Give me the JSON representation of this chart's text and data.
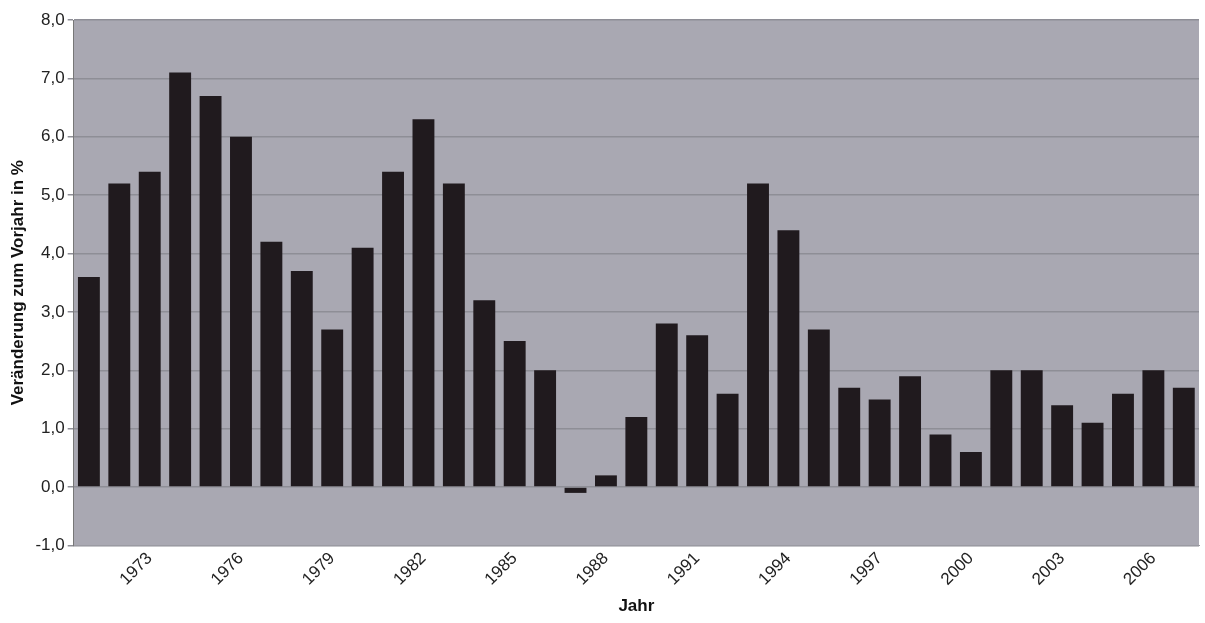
{
  "chart_data": {
    "type": "bar",
    "xlabel": "Jahr",
    "ylabel": "Veränderung zum Vorjahr in %",
    "categories": [
      null,
      null,
      "1973",
      null,
      null,
      "1976",
      null,
      null,
      "1979",
      null,
      null,
      "1982",
      null,
      null,
      "1985",
      null,
      null,
      "1988",
      null,
      null,
      "1991",
      null,
      null,
      "1994",
      null,
      null,
      "1997",
      null,
      null,
      "2000",
      null,
      null,
      "2003",
      null,
      null,
      "2006",
      null
    ],
    "values": [
      3.6,
      5.2,
      5.4,
      7.1,
      6.7,
      6.0,
      4.2,
      3.7,
      2.7,
      4.1,
      5.4,
      6.3,
      5.2,
      3.2,
      2.5,
      2.0,
      -0.1,
      0.2,
      1.2,
      2.8,
      2.6,
      1.6,
      5.2,
      4.4,
      2.7,
      1.7,
      1.5,
      1.9,
      0.9,
      0.6,
      2.0,
      2.0,
      1.4,
      1.1,
      1.6,
      2.0,
      1.7
    ],
    "color": "#201a1e",
    "ylim": [
      -1,
      8
    ],
    "yticks": [
      {
        "value": -1,
        "label": "-1,0"
      },
      {
        "value": 0,
        "label": "0,0"
      },
      {
        "value": 1,
        "label": "1,0"
      },
      {
        "value": 2,
        "label": "2,0"
      },
      {
        "value": 3,
        "label": "3,0"
      },
      {
        "value": 4,
        "label": "4,0"
      },
      {
        "value": 5,
        "label": "5,0"
      },
      {
        "value": 6,
        "label": "6,0"
      },
      {
        "value": 7,
        "label": "7,0"
      },
      {
        "value": 8,
        "label": "8,0"
      }
    ],
    "grid": "y",
    "legend": false
  }
}
